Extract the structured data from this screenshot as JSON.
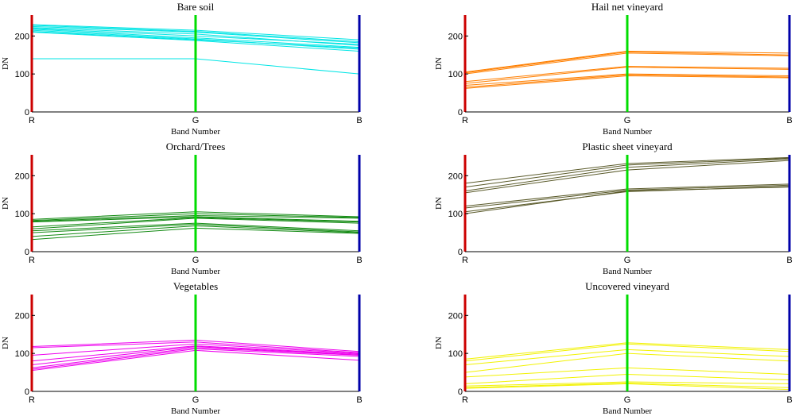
{
  "chart_data": [
    {
      "type": "line",
      "title": "Bare soil",
      "xlabel": "Band Number",
      "ylabel": "DN",
      "categories": [
        "R",
        "G",
        "B"
      ],
      "ylim": [
        0,
        255
      ],
      "yticks": [
        0,
        100,
        200
      ],
      "axis_colors": [
        "#cc0000",
        "#00dd00",
        "#0000aa"
      ],
      "line_color": "#00e5e5",
      "series": [
        {
          "values": [
            230,
            215,
            190
          ]
        },
        {
          "values": [
            228,
            212,
            185
          ]
        },
        {
          "values": [
            225,
            210,
            182
          ]
        },
        {
          "values": [
            222,
            205,
            175
          ]
        },
        {
          "values": [
            220,
            200,
            178
          ]
        },
        {
          "values": [
            218,
            195,
            170
          ]
        },
        {
          "values": [
            215,
            192,
            165
          ]
        },
        {
          "values": [
            212,
            190,
            168
          ]
        },
        {
          "values": [
            210,
            188,
            160
          ]
        },
        {
          "values": [
            140,
            140,
            100
          ]
        }
      ]
    },
    {
      "type": "line",
      "title": "Hail net vineyard",
      "xlabel": "Band Number",
      "ylabel": "DN",
      "categories": [
        "R",
        "G",
        "B"
      ],
      "ylim": [
        0,
        255
      ],
      "yticks": [
        0,
        100,
        200
      ],
      "axis_colors": [
        "#cc0000",
        "#00dd00",
        "#0000aa"
      ],
      "line_color": "#ff7f00",
      "series": [
        {
          "values": [
            105,
            160,
            155
          ]
        },
        {
          "values": [
            103,
            158,
            150
          ]
        },
        {
          "values": [
            100,
            155,
            148
          ]
        },
        {
          "values": [
            80,
            120,
            115
          ]
        },
        {
          "values": [
            75,
            118,
            112
          ]
        },
        {
          "values": [
            70,
            100,
            95
          ]
        },
        {
          "values": [
            65,
            98,
            92
          ]
        },
        {
          "values": [
            62,
            95,
            90
          ]
        }
      ]
    },
    {
      "type": "line",
      "title": "Orchard/Trees",
      "xlabel": "Band Number",
      "ylabel": "DN",
      "categories": [
        "R",
        "G",
        "B"
      ],
      "ylim": [
        0,
        255
      ],
      "yticks": [
        0,
        100,
        200
      ],
      "axis_colors": [
        "#cc0000",
        "#00dd00",
        "#0000aa"
      ],
      "line_color": "#138a13",
      "series": [
        {
          "values": [
            85,
            105,
            92
          ]
        },
        {
          "values": [
            82,
            100,
            90
          ]
        },
        {
          "values": [
            80,
            95,
            88
          ]
        },
        {
          "values": [
            78,
            92,
            80
          ]
        },
        {
          "values": [
            65,
            90,
            78
          ]
        },
        {
          "values": [
            60,
            88,
            75
          ]
        },
        {
          "values": [
            55,
            75,
            55
          ]
        },
        {
          "values": [
            50,
            72,
            52
          ]
        },
        {
          "values": [
            40,
            68,
            50
          ]
        },
        {
          "values": [
            32,
            62,
            48
          ]
        }
      ]
    },
    {
      "type": "line",
      "title": "Plastic sheet vineyard",
      "xlabel": "Band Number",
      "ylabel": "DN",
      "categories": [
        "R",
        "G",
        "B"
      ],
      "ylim": [
        0,
        255
      ],
      "yticks": [
        0,
        100,
        200
      ],
      "axis_colors": [
        "#cc0000",
        "#00dd00",
        "#0000aa"
      ],
      "line_color": "#5a5a2a",
      "series": [
        {
          "values": [
            180,
            232,
            248
          ]
        },
        {
          "values": [
            170,
            228,
            246
          ]
        },
        {
          "values": [
            160,
            222,
            244
          ]
        },
        {
          "values": [
            155,
            215,
            240
          ]
        },
        {
          "values": [
            120,
            165,
            178
          ]
        },
        {
          "values": [
            115,
            162,
            175
          ]
        },
        {
          "values": [
            105,
            158,
            172
          ]
        },
        {
          "values": [
            100,
            160,
            170
          ]
        }
      ]
    },
    {
      "type": "line",
      "title": "Vegetables",
      "xlabel": "Band Number",
      "ylabel": "DN",
      "categories": [
        "R",
        "G",
        "B"
      ],
      "ylim": [
        0,
        255
      ],
      "yticks": [
        0,
        100,
        200
      ],
      "axis_colors": [
        "#cc0000",
        "#00dd00",
        "#0000aa"
      ],
      "line_color": "#ee00ee",
      "series": [
        {
          "values": [
            118,
            135,
            105
          ]
        },
        {
          "values": [
            115,
            130,
            102
          ]
        },
        {
          "values": [
            95,
            125,
            100
          ]
        },
        {
          "values": [
            80,
            120,
            98
          ]
        },
        {
          "values": [
            70,
            118,
            96
          ]
        },
        {
          "values": [
            62,
            115,
            95
          ]
        },
        {
          "values": [
            58,
            112,
            92
          ]
        },
        {
          "values": [
            55,
            108,
            82
          ]
        }
      ]
    },
    {
      "type": "line",
      "title": "Uncovered vineyard",
      "xlabel": "Band Number",
      "ylabel": "DN",
      "categories": [
        "R",
        "G",
        "B"
      ],
      "ylim": [
        0,
        255
      ],
      "yticks": [
        0,
        100,
        200
      ],
      "axis_colors": [
        "#cc0000",
        "#00dd00",
        "#0000aa"
      ],
      "line_color": "#f2f200",
      "series": [
        {
          "values": [
            85,
            128,
            110
          ]
        },
        {
          "values": [
            80,
            125,
            105
          ]
        },
        {
          "values": [
            70,
            110,
            92
          ]
        },
        {
          "values": [
            50,
            100,
            80
          ]
        },
        {
          "values": [
            38,
            62,
            45
          ]
        },
        {
          "values": [
            20,
            45,
            30
          ]
        },
        {
          "values": [
            14,
            25,
            20
          ]
        },
        {
          "values": [
            10,
            22,
            10
          ]
        },
        {
          "values": [
            8,
            20,
            5
          ]
        }
      ]
    }
  ]
}
